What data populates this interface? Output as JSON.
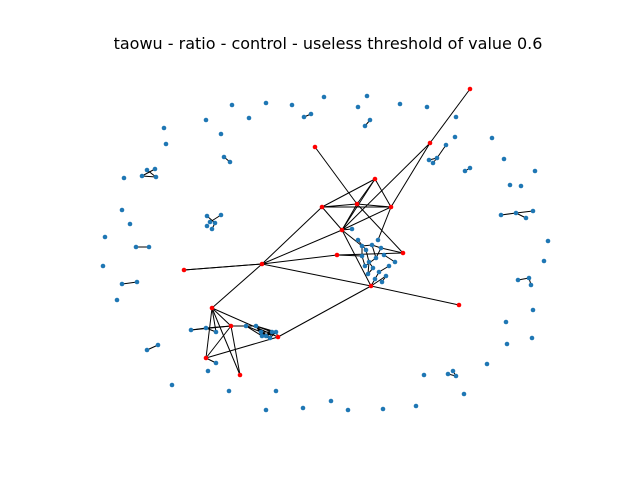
{
  "title": "taowu - ratio - control - useless threshold of value 0.6",
  "colors": {
    "background": "#ffffff",
    "node": "#1f77b4",
    "highlight_node": "#ff0000",
    "edge": "#000000",
    "text": "#000000"
  },
  "graph": {
    "node_count": 142,
    "highlighted_node_count": 21,
    "layout": "force-directed network with scattered isolated nodes around the perimeter"
  }
}
